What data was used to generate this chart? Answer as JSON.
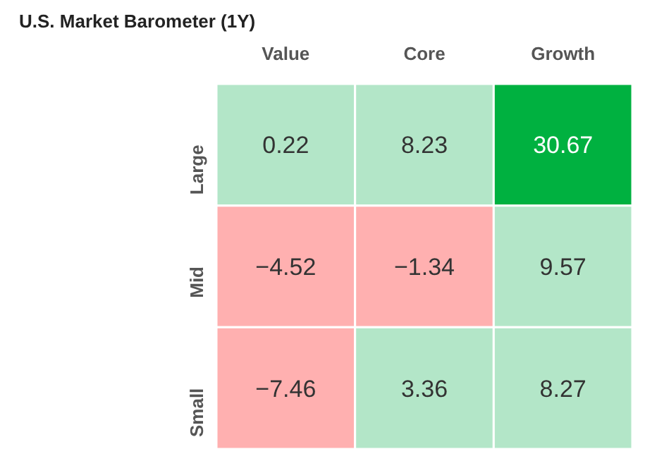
{
  "chart_data": {
    "type": "heatmap",
    "title": "U.S. Market Barometer (1Y)",
    "categories": [
      "Value",
      "Core",
      "Growth"
    ],
    "y_categories": [
      "Large",
      "Mid",
      "Small"
    ],
    "data_labels": true,
    "cells": [
      [
        0.22,
        8.23,
        30.67
      ],
      [
        -4.52,
        -1.34,
        9.57
      ],
      [
        -7.46,
        3.36,
        8.27
      ]
    ],
    "colors": [
      [
        "#b3e6c8",
        "#b3e6c8",
        "#00b140"
      ],
      [
        "#ffb0b0",
        "#ffb0b0",
        "#b3e6c8"
      ],
      [
        "#ffb0b0",
        "#b3e6c8",
        "#b3e6c8"
      ]
    ]
  }
}
